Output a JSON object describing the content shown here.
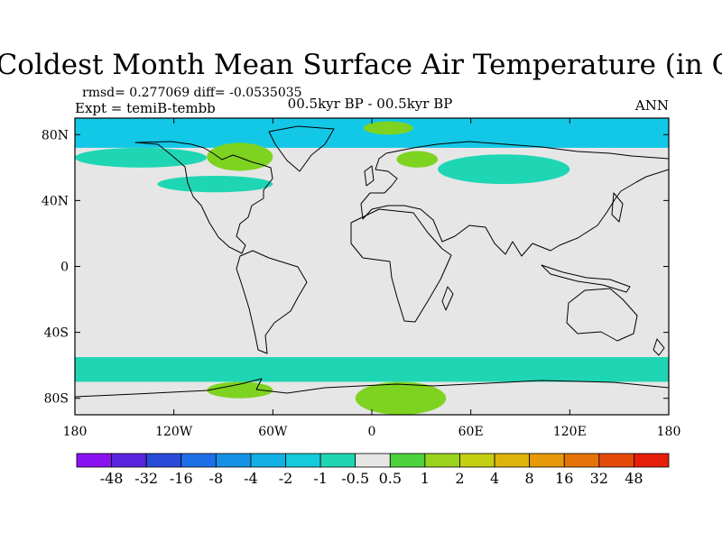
{
  "title": "Coldest Month Mean Surface Air Temperature (in C)",
  "stats": "rmsd= 0.277069 diff= -0.0535035",
  "experiment": "Expt = temiB-tembb",
  "period": "00.5kyr BP - 00.5kyr BP",
  "season": "ANN",
  "chart_data": {
    "type": "map",
    "projection": "cylindrical-equidistant",
    "xlim": [
      -180,
      180
    ],
    "ylim": [
      -90,
      90
    ],
    "lon_ticks": [
      {
        "value": -180,
        "label": "180"
      },
      {
        "value": -120,
        "label": "120W"
      },
      {
        "value": -60,
        "label": "60W"
      },
      {
        "value": 0,
        "label": "0"
      },
      {
        "value": 60,
        "label": "60E"
      },
      {
        "value": 120,
        "label": "120E"
      },
      {
        "value": 180,
        "label": "180"
      }
    ],
    "lat_ticks": [
      {
        "value": 80,
        "label": "80N"
      },
      {
        "value": 40,
        "label": "40N"
      },
      {
        "value": 0,
        "label": "0"
      },
      {
        "value": -40,
        "label": "40S"
      },
      {
        "value": -80,
        "label": "80S"
      }
    ],
    "colorbar": {
      "levels": [
        "-48",
        "-32",
        "-16",
        "-8",
        "-4",
        "-2",
        "-1",
        "-0.5",
        "0.5",
        "1",
        "2",
        "4",
        "8",
        "16",
        "32",
        "48"
      ],
      "colors": [
        "#8a12f0",
        "#5a24e0",
        "#2a4ad8",
        "#1c6fe6",
        "#1592e6",
        "#13b0e6",
        "#14cadb",
        "#1fd6b4",
        "#e6e6e6",
        "#4cd23a",
        "#9bd21e",
        "#c5cf12",
        "#ddb40c",
        "#e69a0a",
        "#e6720a",
        "#e64a0a",
        "#e61e0a"
      ]
    },
    "anomaly_regions": [
      {
        "category": "-2 to -1",
        "color": "#13c8e6",
        "lon": [
          -180,
          180
        ],
        "lat": [
          72,
          90
        ],
        "note": "Arctic band"
      },
      {
        "category": "-1 to -0.5",
        "color": "#1fd6b4",
        "lon": [
          -180,
          -100
        ],
        "lat": [
          60,
          72
        ]
      },
      {
        "category": "0.5 to 1",
        "color": "#7ed321",
        "lon": [
          -100,
          -60
        ],
        "lat": [
          58,
          75
        ],
        "note": "Hudson Bay / Canadian Arctic"
      },
      {
        "category": "0.5 to 1",
        "color": "#7ed321",
        "lon": [
          -5,
          25
        ],
        "lat": [
          80,
          88
        ],
        "note": "Svalbard"
      },
      {
        "category": "0.5 to 1",
        "color": "#7ed321",
        "lon": [
          15,
          40
        ],
        "lat": [
          60,
          70
        ],
        "note": "Scandinavia"
      },
      {
        "category": "-1 to -0.5",
        "color": "#1fd6b4",
        "lon": [
          40,
          120
        ],
        "lat": [
          50,
          68
        ],
        "note": "Northern Asia"
      },
      {
        "category": "-1 to -0.5",
        "color": "#1fd6b4",
        "lon": [
          -130,
          -60
        ],
        "lat": [
          45,
          55
        ]
      },
      {
        "category": "-1 to -0.5",
        "color": "#1fd6b4",
        "lon": [
          -180,
          180
        ],
        "lat": [
          -70,
          -55
        ],
        "note": "Southern Ocean patches"
      },
      {
        "category": "0.5 to 1",
        "color": "#7ed321",
        "lon": [
          -10,
          45
        ],
        "lat": [
          -90,
          -70
        ],
        "note": "East Antarctica"
      },
      {
        "category": "0.5 to 1",
        "color": "#7ed321",
        "lon": [
          -100,
          -60
        ],
        "lat": [
          -80,
          -70
        ],
        "note": "West Antarctica"
      }
    ]
  }
}
